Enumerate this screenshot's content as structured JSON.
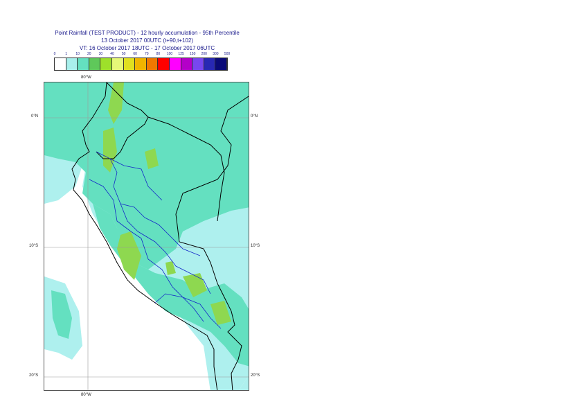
{
  "title": {
    "line1": "Point Rainfall (TEST PRODUCT) - 12 hourly accumulation - 95th Percentile",
    "line2": "13 October 2017 00UTC (t+90,t+102)",
    "line3": "VT: 16 October 2017 18UTC - 17 October 2017 06UTC"
  },
  "legend": {
    "thresholds": [
      "0",
      "1",
      "10",
      "20",
      "30",
      "40",
      "50",
      "60",
      "70",
      "80",
      "100",
      "125",
      "150",
      "200",
      "300",
      "500"
    ],
    "colors": [
      "#ffffff",
      "#a8f0ec",
      "#64e0c0",
      "#5fc85a",
      "#9ee02a",
      "#e6f878",
      "#e0e020",
      "#f0b400",
      "#f07800",
      "#ff0000",
      "#ff00ff",
      "#b400c8",
      "#7846f0",
      "#2828b4",
      "#0a0a78"
    ]
  },
  "map": {
    "lon_top": "80°W",
    "lon_bottom": "80°W",
    "lat_0_left": "0°N",
    "lat_0_right": "0°N",
    "lat_10_left": "10°S",
    "lat_10_right": "10°S",
    "lat_20_left": "20°S",
    "lat_20_right": "20°S",
    "fill_colors": {
      "light": "#aef0ee",
      "medium": "#64e0c0",
      "green": "#8ed850",
      "yellowgreen": "#b6e030",
      "border_national": "#000000",
      "border_regional": "#1428c8",
      "gridline": "#9a9a9a"
    }
  }
}
